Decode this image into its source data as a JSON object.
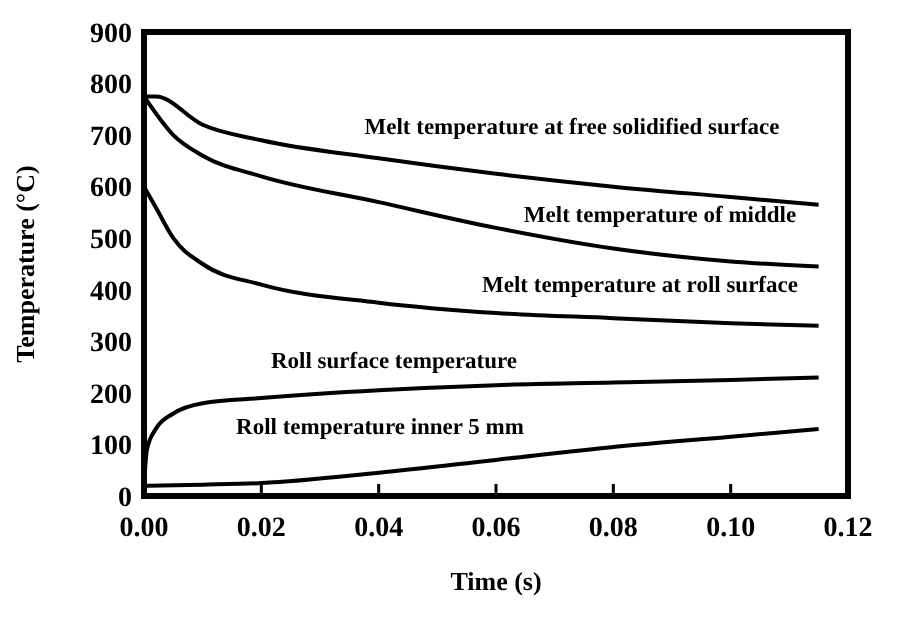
{
  "chart_data": {
    "type": "line",
    "xlabel": "Time (s)",
    "ylabel": "Temperature (°C)",
    "xlim": [
      0,
      0.12
    ],
    "ylim": [
      0,
      900
    ],
    "xticks": [
      {
        "value": 0,
        "label": "0.00"
      },
      {
        "value": 0.02,
        "label": "0.02"
      },
      {
        "value": 0.04,
        "label": "0.04"
      },
      {
        "value": 0.06,
        "label": "0.06"
      },
      {
        "value": 0.08,
        "label": "0.08"
      },
      {
        "value": 0.1,
        "label": "0.10"
      },
      {
        "value": 0.12,
        "label": "0.12"
      }
    ],
    "yticks": [
      0,
      100,
      200,
      300,
      400,
      500,
      600,
      700,
      800,
      900
    ],
    "grid": false,
    "marker": "none",
    "line_style": "solid",
    "series": [
      {
        "name": "Melt temperature at free solidified surface",
        "color": "#000000",
        "x": [
          0,
          0.002,
          0.01,
          0.02,
          0.04,
          0.06,
          0.08,
          0.1,
          0.115
        ],
        "values": [
          775,
          775,
          720,
          690,
          655,
          625,
          600,
          580,
          565
        ]
      },
      {
        "name": "Melt temperature of middle",
        "color": "#000000",
        "x": [
          0,
          0.005,
          0.01,
          0.02,
          0.04,
          0.06,
          0.08,
          0.1,
          0.115
        ],
        "values": [
          775,
          700,
          660,
          620,
          570,
          520,
          480,
          455,
          445
        ]
      },
      {
        "name": "Melt temperature at roll surface",
        "color": "#000000",
        "x": [
          0,
          0.002,
          0.005,
          0.01,
          0.02,
          0.04,
          0.06,
          0.08,
          0.1,
          0.115
        ],
        "values": [
          600,
          560,
          500,
          450,
          410,
          375,
          355,
          345,
          335,
          330
        ]
      },
      {
        "name": "Roll surface temperature",
        "color": "#000000",
        "x": [
          0,
          0.0005,
          0.002,
          0.005,
          0.01,
          0.02,
          0.04,
          0.06,
          0.08,
          0.1,
          0.115
        ],
        "values": [
          20,
          90,
          130,
          160,
          180,
          190,
          205,
          215,
          220,
          225,
          230
        ]
      },
      {
        "name": "Roll temperature inner 5 mm",
        "color": "#000000",
        "x": [
          0,
          0.01,
          0.02,
          0.04,
          0.06,
          0.08,
          0.1,
          0.115
        ],
        "values": [
          20,
          22,
          25,
          45,
          70,
          95,
          115,
          130
        ]
      }
    ]
  }
}
